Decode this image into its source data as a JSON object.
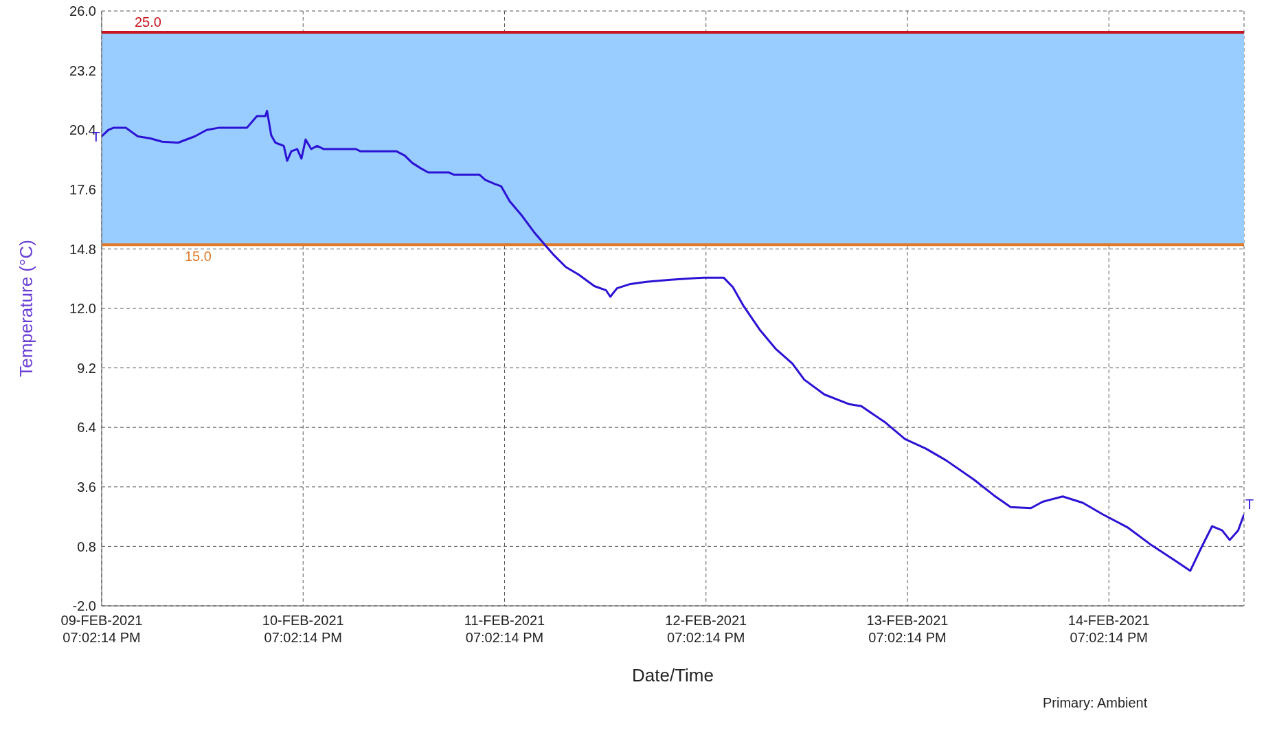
{
  "chart_data": {
    "type": "line",
    "xlabel": "Date/Time",
    "ylabel": "Temperature (°C)",
    "x": [
      "2021-02-09T19:02",
      "2021-02-09T19:50",
      "2021-02-09T20:26",
      "2021-02-09T21:56",
      "2021-02-09T23:20",
      "2021-02-10T00:50",
      "2021-02-10T02:14",
      "2021-02-10T04:08",
      "2021-02-10T06:08",
      "2021-02-10T07:32",
      "2021-02-10T08:56",
      "2021-02-10T12:20",
      "2021-02-10T13:32",
      "2021-02-10T14:32",
      "2021-02-10T14:44",
      "2021-02-10T15:14",
      "2021-02-10T15:44",
      "2021-02-10T16:44",
      "2021-02-10T17:08",
      "2021-02-10T17:38",
      "2021-02-10T18:20",
      "2021-02-10T18:50",
      "2021-02-10T19:20",
      "2021-02-10T20:00",
      "2021-02-10T20:42",
      "2021-02-10T21:30",
      "2021-02-11T01:20",
      "2021-02-11T01:50",
      "2021-02-11T06:08",
      "2021-02-11T07:08",
      "2021-02-11T08:02",
      "2021-02-11T09:02",
      "2021-02-11T09:56",
      "2021-02-11T12:26",
      "2021-02-11T12:56",
      "2021-02-11T16:02",
      "2021-02-11T16:44",
      "2021-02-11T17:56",
      "2021-02-11T18:38",
      "2021-02-11T19:38",
      "2021-02-11T21:02",
      "2021-02-11T22:32",
      "2021-02-11T23:56",
      "2021-02-12T00:56",
      "2021-02-12T02:20",
      "2021-02-12T03:50",
      "2021-02-12T05:44",
      "2021-02-12T07:08",
      "2021-02-12T07:38",
      "2021-02-12T08:26",
      "2021-02-12T10:02",
      "2021-02-12T11:56",
      "2021-02-12T14:50",
      "2021-02-12T18:44",
      "2021-02-12T21:08",
      "2021-02-12T22:14",
      "2021-02-12T23:32",
      "2021-02-13T01:26",
      "2021-02-13T03:20",
      "2021-02-13T05:20",
      "2021-02-13T06:44",
      "2021-02-13T09:08",
      "2021-02-13T12:02",
      "2021-02-13T13:32",
      "2021-02-13T16:20",
      "2021-02-13T18:44",
      "2021-02-13T21:14",
      "2021-02-13T23:38",
      "2021-02-14T02:56",
      "2021-02-14T05:20",
      "2021-02-14T07:20",
      "2021-02-14T09:44",
      "2021-02-14T11:08",
      "2021-02-14T13:32",
      "2021-02-14T15:56",
      "2021-02-14T18:20",
      "2021-02-14T21:14",
      "2021-02-15T00:08",
      "2021-02-15T03:02",
      "2021-02-15T04:44",
      "2021-02-15T05:56",
      "2021-02-15T07:20",
      "2021-02-15T08:32",
      "2021-02-15T09:26",
      "2021-02-15T10:26",
      "2021-02-15T11:08"
    ],
    "series": [
      {
        "color": "#2b12d4",
        "values": [
          20.1,
          20.4,
          20.5,
          20.5,
          20.1,
          20.0,
          19.85,
          19.8,
          20.1,
          20.4,
          20.5,
          20.5,
          21.05,
          21.05,
          21.3,
          20.15,
          19.8,
          19.65,
          18.95,
          19.4,
          19.5,
          19.05,
          19.95,
          19.5,
          19.65,
          19.5,
          19.5,
          19.4,
          19.4,
          19.2,
          18.85,
          18.6,
          18.4,
          18.4,
          18.3,
          18.3,
          18.05,
          17.85,
          17.75,
          17.05,
          16.4,
          15.6,
          14.95,
          14.5,
          13.95,
          13.6,
          13.05,
          12.85,
          12.55,
          12.95,
          13.15,
          13.25,
          13.35,
          13.45,
          13.45,
          13.0,
          12.1,
          11.0,
          10.1,
          9.4,
          8.65,
          7.95,
          7.5,
          7.4,
          6.65,
          5.85,
          5.4,
          4.85,
          3.95,
          3.2,
          2.65,
          2.6,
          2.9,
          3.15,
          2.85,
          2.3,
          1.7,
          0.85,
          0.1,
          -0.35,
          0.65,
          1.75,
          1.55,
          1.1,
          1.55,
          2.3
        ]
      }
    ],
    "xlim": [
      "2021-02-09T19:02",
      "2021-02-15T11:08"
    ],
    "xticks": [
      {
        "value": "2021-02-09T19:02",
        "label": "09-FEB-2021\n07:02:14 PM"
      },
      {
        "value": "2021-02-10T19:02",
        "label": "10-FEB-2021\n07:02:14 PM"
      },
      {
        "value": "2021-02-11T19:02",
        "label": "11-FEB-2021\n07:02:14 PM"
      },
      {
        "value": "2021-02-12T19:02",
        "label": "12-FEB-2021\n07:02:14 PM"
      },
      {
        "value": "2021-02-13T19:02",
        "label": "13-FEB-2021\n07:02:14 PM"
      },
      {
        "value": "2021-02-14T19:02",
        "label": "14-FEB-2021\n07:02:14 PM"
      }
    ],
    "ylim": [
      -2,
      26
    ],
    "yticks": [
      {
        "value": -2,
        "label": "-2.0"
      },
      {
        "value": 0.8,
        "label": "0.8"
      },
      {
        "value": 3.6,
        "label": "3.6"
      },
      {
        "value": 6.4,
        "label": "6.4"
      },
      {
        "value": 9.2,
        "label": "9.2"
      },
      {
        "value": 12,
        "label": "12.0"
      },
      {
        "value": 14.8,
        "label": "14.8"
      },
      {
        "value": 17.6,
        "label": "17.6"
      },
      {
        "value": 20.4,
        "label": "20.4"
      },
      {
        "value": 23.2,
        "label": "23.2"
      },
      {
        "value": 26,
        "label": "26.0"
      }
    ],
    "bands": [
      {
        "axis": "y",
        "from": 15,
        "to": 25,
        "color": "#99ccff"
      }
    ],
    "ref_lines": [
      {
        "axis": "y",
        "value": 25,
        "label": "25.0",
        "color": "#c8141e"
      },
      {
        "axis": "y",
        "value": 15,
        "label": "15.0",
        "color": "#e07a2a"
      }
    ],
    "annotations": [
      {
        "text": "T",
        "x": "2021-02-09T19:02",
        "y": 20.1
      },
      {
        "text": "T",
        "x": "2021-02-15T11:08",
        "y": 2.3
      },
      "Primary: Ambient"
    ],
    "grid": true,
    "line_style": "solid",
    "marker": "none",
    "legend": false
  }
}
